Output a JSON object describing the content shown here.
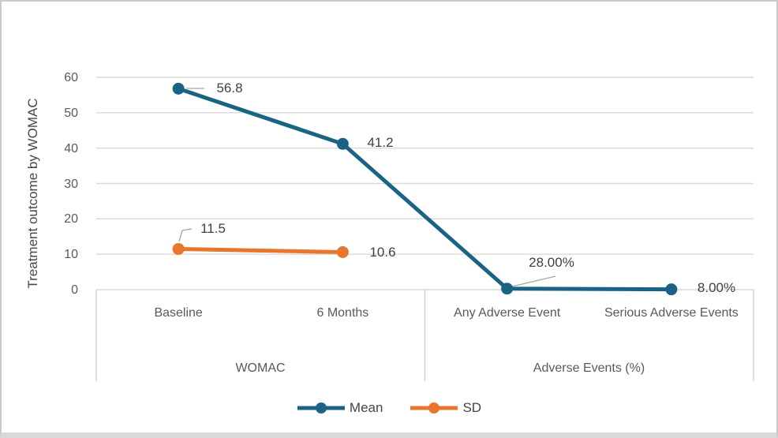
{
  "figure": {
    "background": "#FFFFFF",
    "border_color": "#C9C9C9",
    "bottom_strip_color": "#D9D9D9"
  },
  "chart_data": {
    "type": "line",
    "title": "",
    "xlabel": "",
    "ylabel": "Treatment outcome by WOMAC",
    "ylim": [
      0,
      60
    ],
    "yticks": [
      "0",
      "10",
      "20",
      "30",
      "40",
      "50",
      "60"
    ],
    "grid": true,
    "legend_position": "bottom",
    "categories": [
      "Baseline",
      "6 Months",
      "Any Adverse Event",
      "Serious Adverse Events"
    ],
    "category_groups": [
      "WOMAC",
      "Adverse Events (%)"
    ],
    "series": [
      {
        "name": "Mean",
        "color": "#1B6385",
        "values": [
          56.8,
          41.2,
          0.28,
          0.08
        ],
        "point_labels": [
          "56.8",
          "41.2",
          "28.00%",
          "8.00%"
        ]
      },
      {
        "name": "SD",
        "color": "#E8762D",
        "values": [
          11.5,
          10.6,
          null,
          null
        ],
        "point_labels": [
          "11.5",
          "10.6",
          null,
          null
        ]
      }
    ],
    "colors": {
      "gridline": "#D9D9D9",
      "separator": "#D2D2D2",
      "axis_text": "#595959",
      "data_label_text": "#404040",
      "leader_line": "#A6A6A6"
    }
  }
}
